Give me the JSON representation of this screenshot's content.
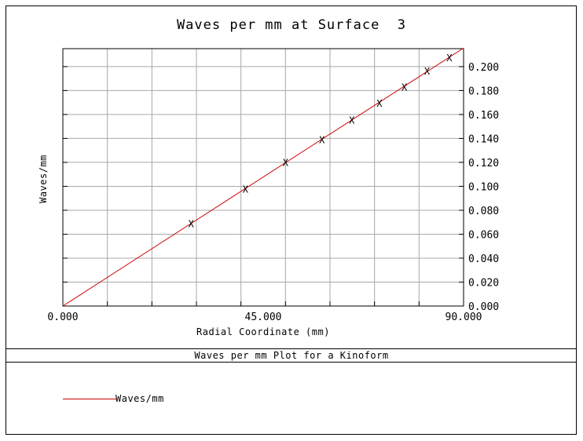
{
  "chart_data": {
    "type": "line",
    "title": "Waves per mm at Surface  3",
    "xlabel": "Radial Coordinate (mm)",
    "ylabel": "Waves/mm",
    "subtitle": "Waves per mm Plot for a Kinoform",
    "xlim": [
      0,
      90
    ],
    "ylim": [
      0,
      0.215
    ],
    "x_ticks": [
      "0.000",
      "45.000",
      "90.000"
    ],
    "y_ticks": [
      "0.000",
      "0.020",
      "0.040",
      "0.060",
      "0.080",
      "0.100",
      "0.120",
      "0.140",
      "0.160",
      "0.180",
      "0.200"
    ],
    "y_tick_values": [
      0,
      0.02,
      0.04,
      0.06,
      0.08,
      0.1,
      0.12,
      0.14,
      0.16,
      0.18,
      0.2
    ],
    "x_grid": [
      0,
      10,
      20,
      30,
      40,
      50,
      60,
      70,
      80,
      90
    ],
    "y_grid": [
      0,
      0.02,
      0.04,
      0.06,
      0.08,
      0.1,
      0.12,
      0.14,
      0.16,
      0.18,
      0.2
    ],
    "grid": true,
    "legend_position": "bottom-left",
    "series": [
      {
        "name": "Waves/mm",
        "color": "#cc0000",
        "x": [
          0,
          90
        ],
        "y": [
          0,
          0.2155
        ]
      }
    ],
    "markers": {
      "symbol": "X",
      "x": [
        28.8,
        41.0,
        50.0,
        58.2,
        64.9,
        71.1,
        76.7,
        81.8,
        86.8
      ],
      "y": [
        0.0685,
        0.0975,
        0.1195,
        0.1385,
        0.155,
        0.169,
        0.1825,
        0.196,
        0.207
      ]
    }
  }
}
